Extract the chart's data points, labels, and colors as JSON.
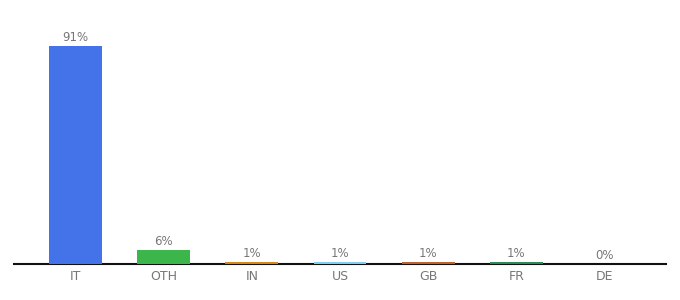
{
  "categories": [
    "IT",
    "OTH",
    "IN",
    "US",
    "GB",
    "FR",
    "DE"
  ],
  "values": [
    91,
    6,
    1,
    1,
    1,
    1,
    0
  ],
  "labels": [
    "91%",
    "6%",
    "1%",
    "1%",
    "1%",
    "1%",
    "0%"
  ],
  "bar_colors": [
    "#4472e8",
    "#3cb54a",
    "#d4891a",
    "#7ecef0",
    "#c0622b",
    "#2e8b57",
    "#c0622b"
  ],
  "background_color": "#ffffff",
  "ylim": [
    0,
    100
  ],
  "bar_width": 0.6
}
